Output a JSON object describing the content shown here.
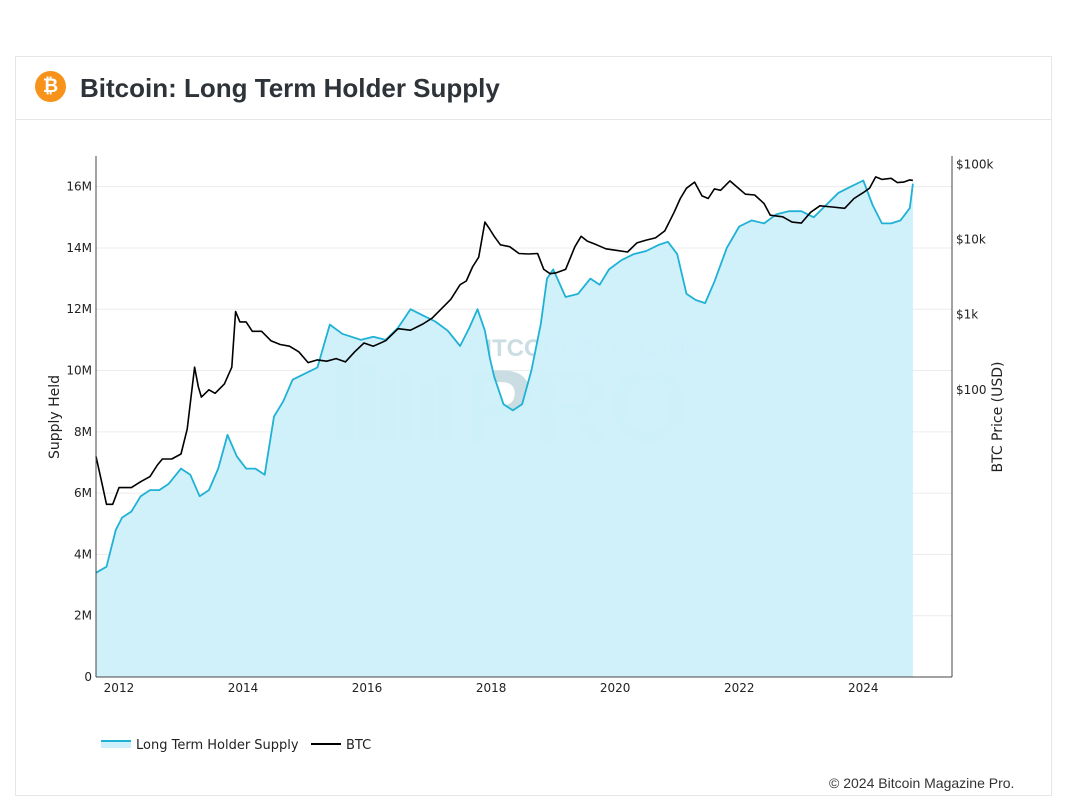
{
  "header": {
    "logo_symbol": "₿",
    "title": "Bitcoin: Long Term Holder Supply"
  },
  "copyright": "© 2024 Bitcoin Magazine Pro.",
  "watermark": {
    "line1": "BITCOIN MAGAZINE",
    "line2": "PRO"
  },
  "colors": {
    "lth_line": "#1fb1d6",
    "lth_fill": "#cff0fa",
    "btc_line": "#000000"
  },
  "chart_data": {
    "type": "line",
    "title": "Bitcoin: Long Term Holder Supply",
    "xlabel": "",
    "ylabel_left": "Supply Held",
    "ylabel_right": "BTC Price (USD)",
    "xlim": [
      2011.63,
      2025.43
    ],
    "ylim_left": [
      0,
      17000000
    ],
    "ylim_right_log10": [
      -1.82,
      5.11
    ],
    "x_ticks": [
      2012,
      2014,
      2016,
      2018,
      2020,
      2022,
      2024
    ],
    "x_tick_labels": [
      "2012",
      "2014",
      "2016",
      "2018",
      "2020",
      "2022",
      "2024"
    ],
    "y_left_ticks": [
      0,
      2000000,
      4000000,
      6000000,
      8000000,
      10000000,
      12000000,
      14000000,
      16000000
    ],
    "y_left_tick_labels": [
      "0",
      "2M",
      "4M",
      "6M",
      "8M",
      "10M",
      "12M",
      "14M",
      "16M"
    ],
    "y_right_ticks": [
      100,
      1000,
      10000,
      100000
    ],
    "y_right_tick_labels": [
      "$100",
      "$1k",
      "$10k",
      "$100k"
    ],
    "legend": [
      "Long Term Holder Supply",
      "BTC"
    ],
    "series": [
      {
        "name": "Long Term Holder Supply",
        "axis": "left",
        "style": "area",
        "x": [
          2011.63,
          2011.8,
          2011.95,
          2012.05,
          2012.2,
          2012.35,
          2012.5,
          2012.65,
          2012.8,
          2013.0,
          2013.15,
          2013.3,
          2013.45,
          2013.6,
          2013.75,
          2013.9,
          2014.05,
          2014.2,
          2014.35,
          2014.5,
          2014.65,
          2014.8,
          2015.0,
          2015.2,
          2015.4,
          2015.6,
          2015.75,
          2015.9,
          2016.1,
          2016.3,
          2016.5,
          2016.7,
          2016.9,
          2017.1,
          2017.3,
          2017.5,
          2017.65,
          2017.78,
          2017.9,
          2017.98,
          2018.05,
          2018.2,
          2018.35,
          2018.5,
          2018.65,
          2018.8,
          2018.9,
          2019.0,
          2019.2,
          2019.4,
          2019.6,
          2019.75,
          2019.9,
          2020.1,
          2020.3,
          2020.5,
          2020.7,
          2020.85,
          2021.0,
          2021.15,
          2021.3,
          2021.45,
          2021.6,
          2021.8,
          2022.0,
          2022.2,
          2022.4,
          2022.6,
          2022.8,
          2023.0,
          2023.2,
          2023.4,
          2023.6,
          2023.8,
          2024.0,
          2024.15,
          2024.3,
          2024.45,
          2024.6,
          2024.75,
          2024.8
        ],
        "values": [
          3400000,
          3600000,
          4800000,
          5200000,
          5400000,
          5900000,
          6100000,
          6100000,
          6300000,
          6800000,
          6600000,
          5900000,
          6100000,
          6800000,
          7900000,
          7200000,
          6800000,
          6800000,
          6600000,
          8500000,
          9000000,
          9700000,
          9900000,
          10100000,
          11500000,
          11200000,
          11100000,
          11000000,
          11100000,
          11000000,
          11400000,
          12000000,
          11800000,
          11600000,
          11300000,
          10800000,
          11400000,
          12000000,
          11300000,
          10400000,
          9800000,
          8900000,
          8700000,
          8900000,
          10000000,
          11500000,
          13000000,
          13300000,
          12400000,
          12500000,
          13000000,
          12800000,
          13300000,
          13600000,
          13800000,
          13900000,
          14100000,
          14200000,
          13800000,
          12500000,
          12300000,
          12200000,
          12900000,
          14000000,
          14700000,
          14900000,
          14800000,
          15100000,
          15200000,
          15200000,
          15000000,
          15400000,
          15800000,
          16000000,
          16200000,
          15400000,
          14800000,
          14800000,
          14900000,
          15300000,
          16100000
        ]
      },
      {
        "name": "BTC",
        "axis": "right",
        "style": "line",
        "x": [
          2011.63,
          2011.72,
          2011.8,
          2011.9,
          2012.0,
          2012.1,
          2012.2,
          2012.35,
          2012.5,
          2012.62,
          2012.7,
          2012.85,
          2013.0,
          2013.1,
          2013.22,
          2013.28,
          2013.33,
          2013.45,
          2013.55,
          2013.7,
          2013.82,
          2013.88,
          2013.95,
          2014.05,
          2014.15,
          2014.3,
          2014.45,
          2014.6,
          2014.75,
          2014.9,
          2015.05,
          2015.2,
          2015.35,
          2015.5,
          2015.65,
          2015.8,
          2015.95,
          2016.1,
          2016.3,
          2016.5,
          2016.7,
          2016.9,
          2017.05,
          2017.2,
          2017.35,
          2017.5,
          2017.6,
          2017.7,
          2017.8,
          2017.9,
          2017.97,
          2018.05,
          2018.15,
          2018.3,
          2018.45,
          2018.6,
          2018.75,
          2018.85,
          2018.95,
          2019.05,
          2019.2,
          2019.35,
          2019.45,
          2019.55,
          2019.7,
          2019.85,
          2020.0,
          2020.2,
          2020.35,
          2020.5,
          2020.65,
          2020.8,
          2020.95,
          2021.05,
          2021.15,
          2021.28,
          2021.4,
          2021.5,
          2021.6,
          2021.7,
          2021.85,
          2022.0,
          2022.1,
          2022.25,
          2022.4,
          2022.5,
          2022.7,
          2022.85,
          2023.0,
          2023.15,
          2023.3,
          2023.5,
          2023.7,
          2023.85,
          2024.0,
          2024.1,
          2024.2,
          2024.3,
          2024.45,
          2024.55,
          2024.65,
          2024.75,
          2024.8
        ],
        "values": [
          13,
          6,
          3,
          3,
          5,
          5,
          5,
          6,
          7,
          10,
          12,
          12,
          14,
          30,
          200,
          110,
          80,
          100,
          90,
          120,
          200,
          1100,
          800,
          800,
          600,
          600,
          450,
          400,
          380,
          320,
          230,
          250,
          240,
          260,
          235,
          320,
          420,
          380,
          450,
          650,
          620,
          750,
          900,
          1200,
          1600,
          2500,
          2800,
          4300,
          5800,
          17000,
          14000,
          11000,
          8500,
          8000,
          6500,
          6400,
          6500,
          4000,
          3500,
          3600,
          4000,
          8000,
          11000,
          9500,
          8500,
          7500,
          7200,
          6800,
          9000,
          9800,
          10500,
          13000,
          23000,
          35000,
          48000,
          58000,
          38000,
          35000,
          47000,
          45000,
          60000,
          47000,
          40000,
          39000,
          30000,
          21000,
          20000,
          17000,
          16500,
          23000,
          28000,
          27000,
          26000,
          35000,
          42000,
          48000,
          68000,
          63000,
          65000,
          57000,
          58000,
          62000,
          61000
        ]
      }
    ]
  }
}
